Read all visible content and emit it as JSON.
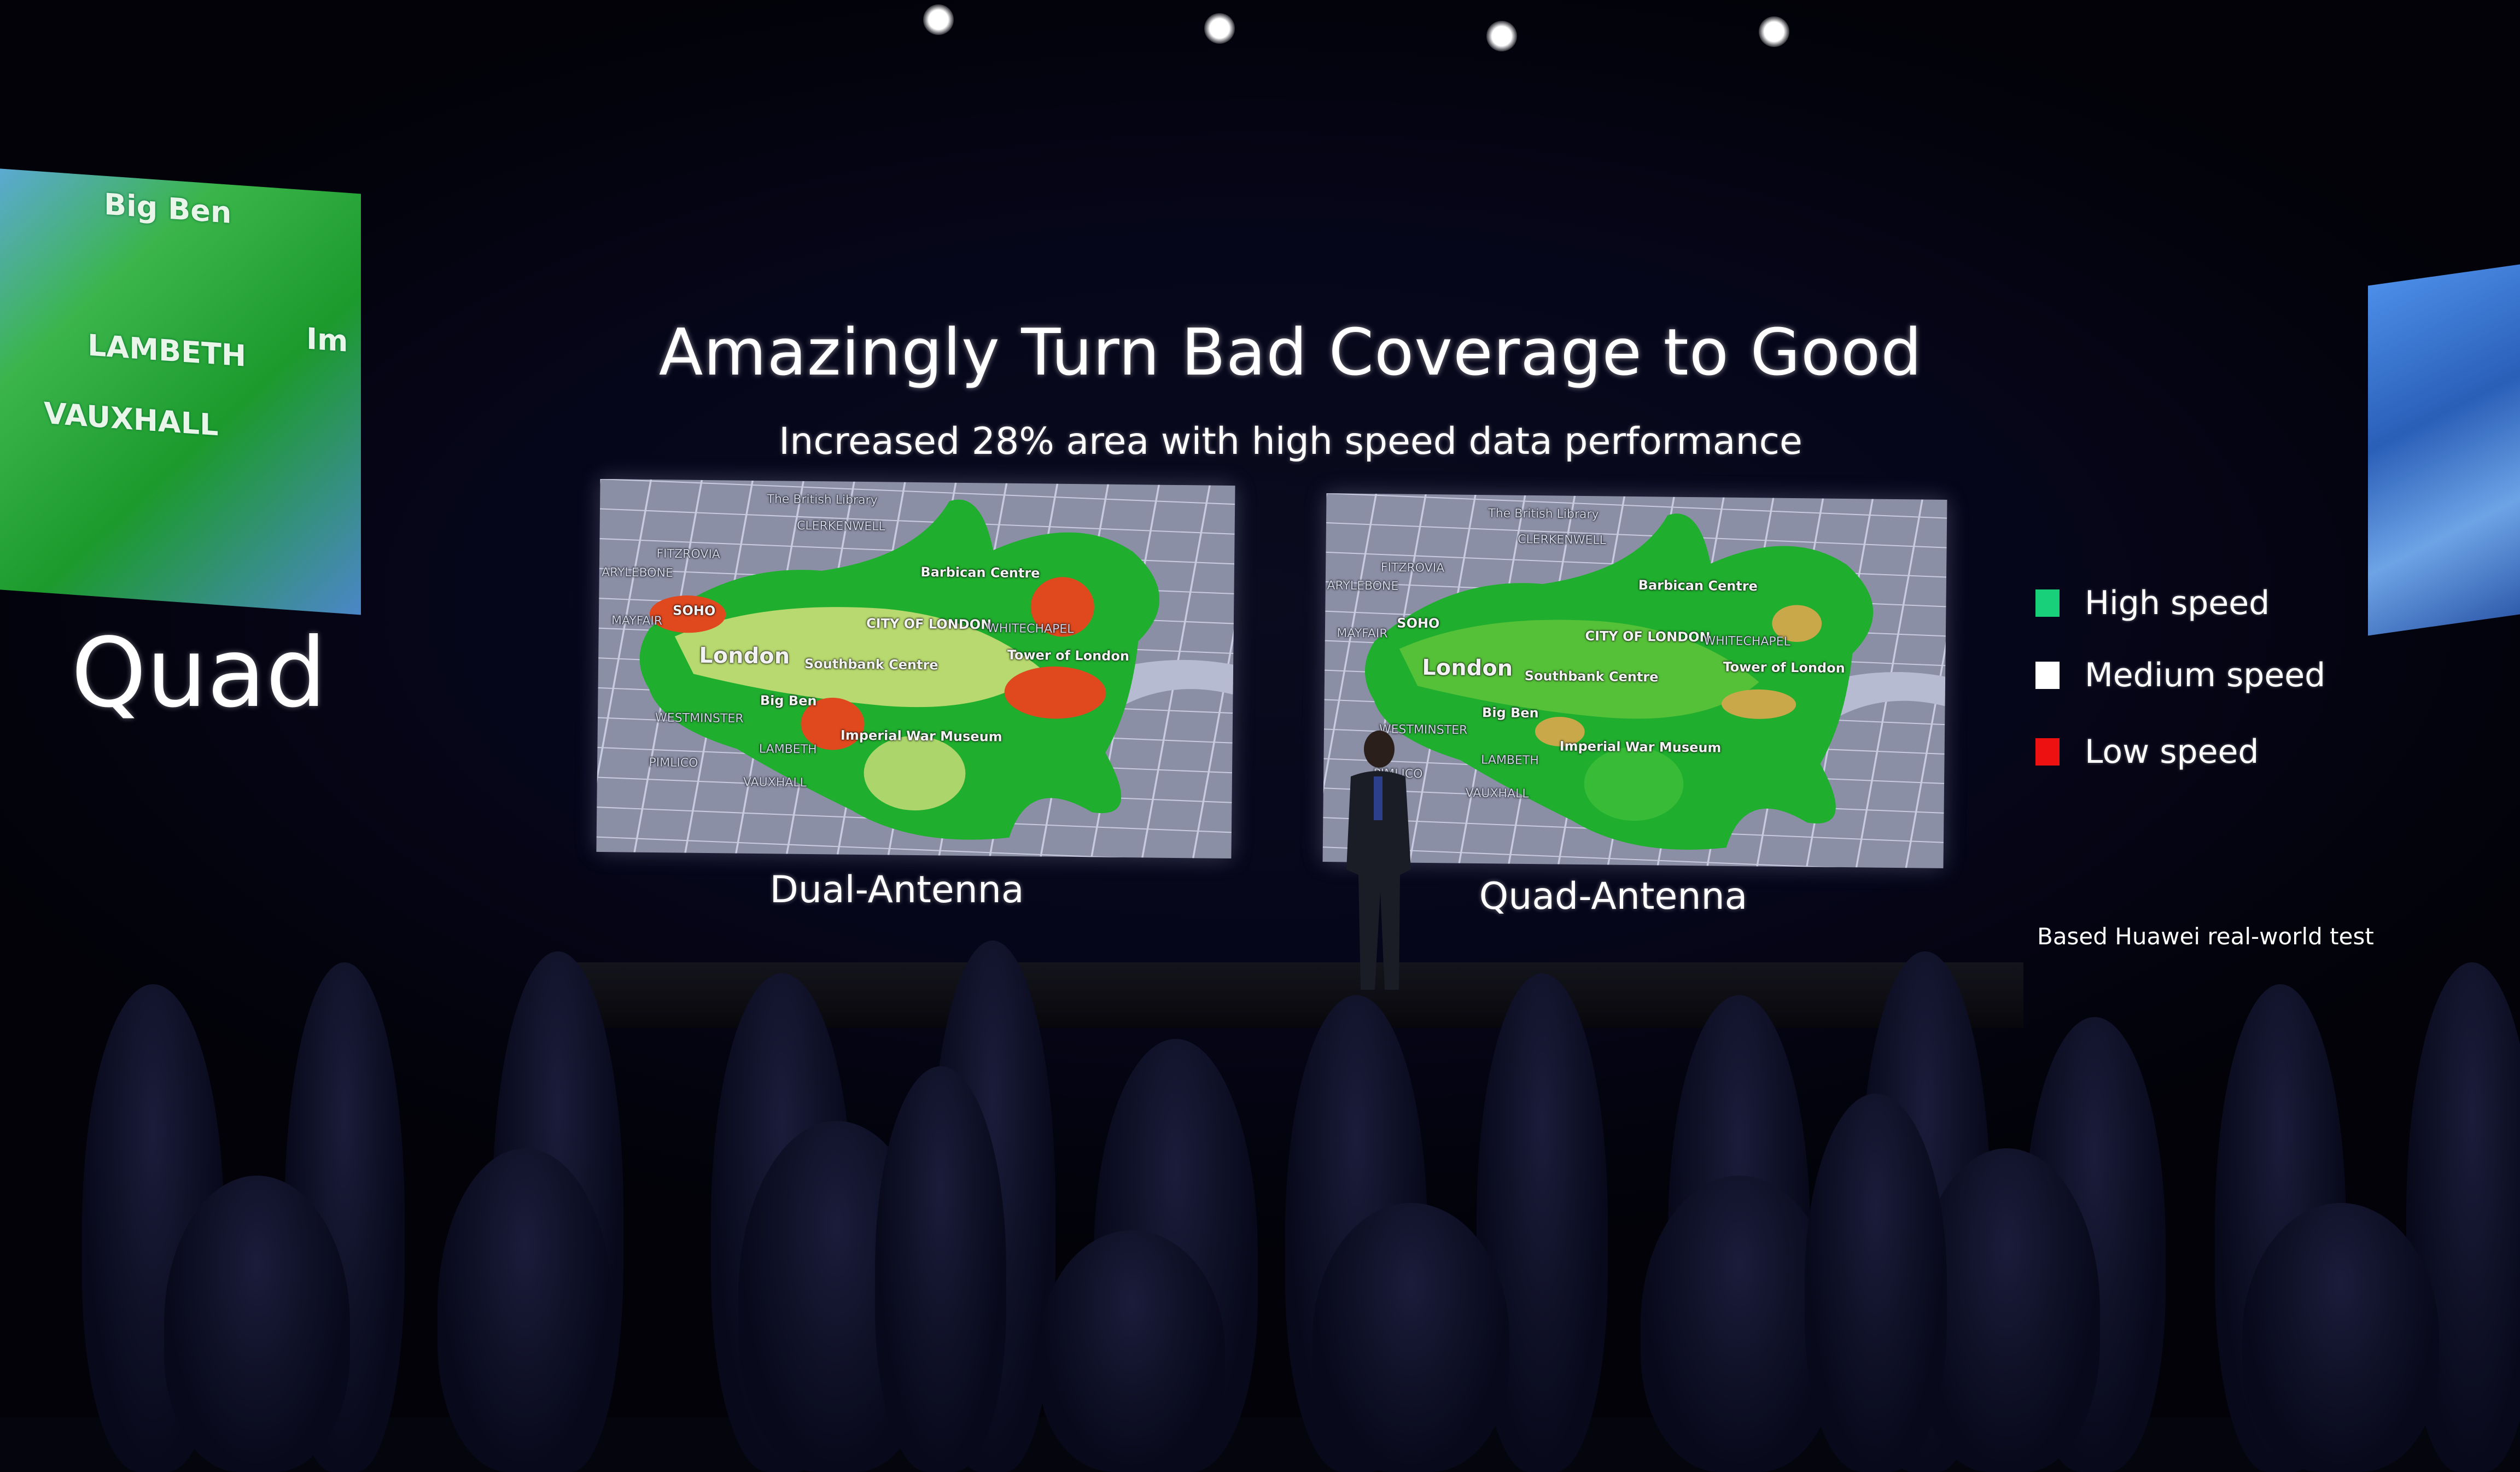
{
  "slide": {
    "title": "Amazingly Turn Bad Coverage to Good",
    "subtitle": "Increased 28% area with high speed data performance",
    "maps": [
      {
        "caption": "Dual-Antenna"
      },
      {
        "caption": "Quad-Antenna"
      }
    ],
    "map_labels": [
      "The British Library",
      "CLERKENWELL",
      "FITZROVIA",
      "ARYLEBONE",
      "Barbican Centre",
      "SOHO",
      "MAYFAIR",
      "CITY OF LONDON",
      "WHITECHAPEL",
      "London",
      "Southbank Centre",
      "Tower of London",
      "Big Ben",
      "WESTMINSTER",
      "Imperial War Museum",
      "LAMBETH",
      "PIMLICO",
      "VAUXHALL"
    ],
    "legend": [
      {
        "label": "High speed",
        "color": "#18d07a"
      },
      {
        "label": "Medium speed",
        "color": "#ffffff"
      },
      {
        "label": "Low speed",
        "color": "#ee1111"
      }
    ],
    "note": "Based Huawei real-world test"
  },
  "side_screen_left": {
    "labels": [
      "Big Ben",
      "LAMBETH",
      "VAUXHALL",
      "Im"
    ],
    "caption": "Quad"
  }
}
